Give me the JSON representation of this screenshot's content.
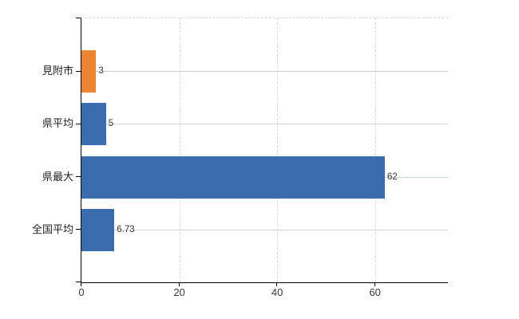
{
  "chart_data": {
    "type": "bar",
    "orientation": "horizontal",
    "title": "",
    "xlabel": "",
    "ylabel": "",
    "categories": [
      "見附市",
      "県平均",
      "県最大",
      "全国平均"
    ],
    "values": [
      3,
      5,
      62,
      6.73
    ],
    "value_labels": [
      "3",
      "5",
      "62",
      "6.73"
    ],
    "bar_colors": [
      "#ec8532",
      "#3b6cae",
      "#3b6cae",
      "#3b6cae"
    ],
    "x_ticks": [
      0,
      20,
      40,
      60
    ],
    "x_tick_labels": [
      "0",
      "20",
      "40",
      "60"
    ],
    "xlim": [
      0,
      74.9
    ],
    "grid": {
      "horizontal": "solid",
      "vertical": "dashed",
      "top_border": "dashed"
    },
    "legend": "none",
    "colors": {
      "background": "#ffffff",
      "axis": "#000000",
      "grid_horizontal": "#ccd6cc",
      "grid_vertical": "#d9d9d9",
      "text": "#383838",
      "bar_highlight": "#ec8532",
      "bar_default": "#3b6cae"
    }
  }
}
